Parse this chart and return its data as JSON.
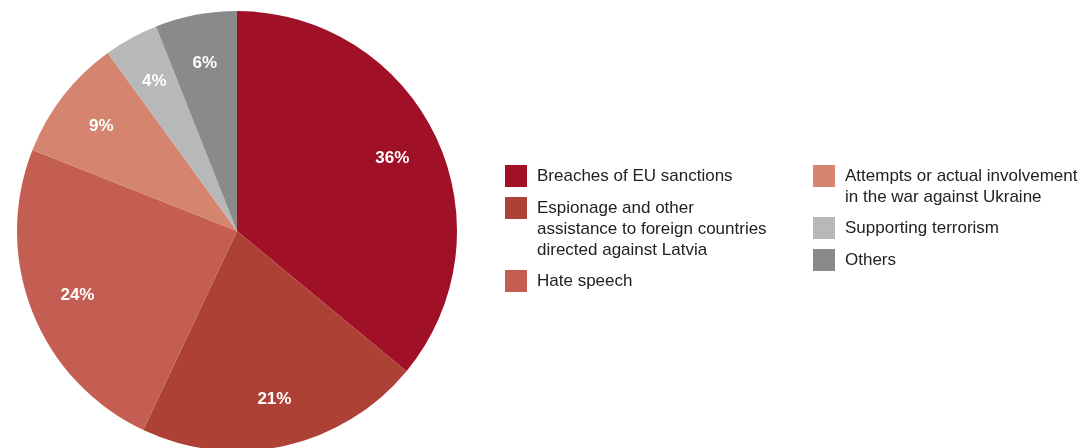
{
  "chart_data": {
    "type": "pie",
    "categories": [
      "Breaches of EU sanctions",
      "Espionage and other assistance to foreign countries directed against Latvia",
      "Hate speech",
      "Attempts or actual involvement in the war against Ukraine",
      "Supporting terrorism",
      "Others"
    ],
    "values": [
      36,
      21,
      24,
      9,
      4,
      6
    ],
    "value_labels": [
      "36%",
      "21%",
      "24%",
      "9%",
      "4%",
      "6%"
    ],
    "colors": [
      "#a01128",
      "#ad4136",
      "#c45e52",
      "#d4846f",
      "#b8b8b8",
      "#8a8a8a"
    ],
    "legend": "right"
  }
}
